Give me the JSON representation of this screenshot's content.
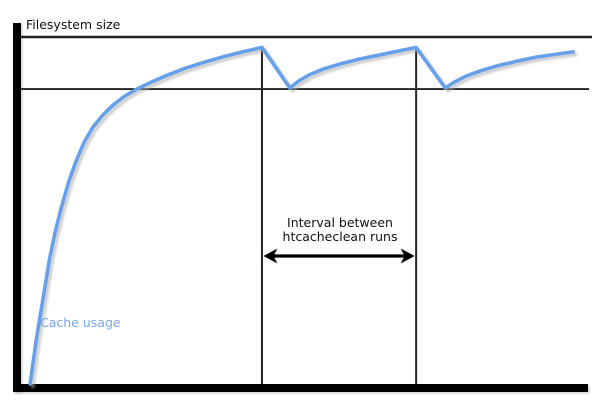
{
  "figure": {
    "title": "Filesystem size",
    "curve_label": "Cache usage",
    "annotation": {
      "line1": "Interval between",
      "line2": "htcacheclean runs",
      "full_text": "Interval between htcacheclean runs"
    }
  },
  "colors": {
    "background": "#ffffff",
    "axis": "#000000",
    "reference_line": "#222222",
    "run_line": "#222222",
    "curve": "#66a0ea",
    "curve_shadow": "#aaaaaa",
    "curve_label_text": "#77a9ed",
    "annotation_text": "#111111",
    "arrow": "#000000"
  },
  "chart_data": {
    "type": "line",
    "title": "Filesystem size",
    "xlabel": "",
    "ylabel": "",
    "grid": false,
    "legend_position": "inline label at lower-left of curve",
    "x_axis_units": "time (unlabeled)",
    "y_axis_units": "percent of filesystem size (unlabeled)",
    "xlim": [
      0,
      100
    ],
    "ylim": [
      0,
      100
    ],
    "reference_lines": {
      "filesystem_size_y": 100,
      "cache_limit_y": 85
    },
    "htcacheclean_runs_x": [
      42.2,
      69.2
    ],
    "arrow_between_runs": true,
    "series": [
      {
        "name": "Cache usage",
        "x": [
          1.6,
          2.1,
          2.7,
          3.4,
          4.2,
          5.0,
          6.0,
          7.1,
          8.3,
          9.6,
          11.0,
          12.6,
          14.3,
          16.2,
          18.2,
          20.3,
          22.8,
          25.6,
          28.8,
          32.2,
          35.4,
          38.8,
          42.2,
          47.1,
          48.6,
          50.6,
          53.0,
          56.0,
          59.4,
          63.0,
          66.2,
          69.2,
          74.3,
          75.9,
          77.9,
          80.4,
          83.4,
          86.8,
          90.2,
          93.5,
          96.7
        ],
        "y": [
          0,
          6,
          13,
          20,
          28,
          36,
          44,
          51,
          58,
          64,
          69.5,
          74,
          77.5,
          80.5,
          83,
          85,
          87,
          89,
          91,
          92.8,
          94.3,
          95.7,
          97,
          85.3,
          87.3,
          89.2,
          90.8,
          92.3,
          93.7,
          94.9,
          96,
          97,
          85.3,
          87,
          88.7,
          90.2,
          91.7,
          93,
          94.2,
          95,
          95.7
        ]
      }
    ],
    "description": "Cache usage grows toward the filesystem size, is cut back to the cache limit at each htcacheclean run, producing a sawtooth pattern."
  }
}
